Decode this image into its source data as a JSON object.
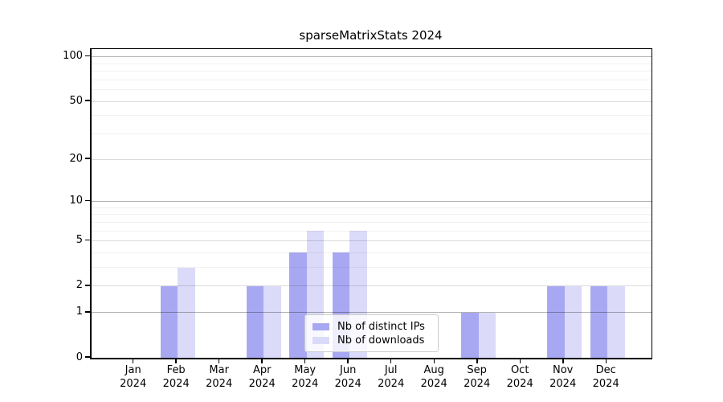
{
  "title": "sparseMatrixStats 2024",
  "chart_data": {
    "type": "bar",
    "title": "sparseMatrixStats 2024",
    "year": "2024",
    "categories": [
      "Jan",
      "Feb",
      "Mar",
      "Apr",
      "May",
      "Jun",
      "Jul",
      "Aug",
      "Sep",
      "Oct",
      "Nov",
      "Dec"
    ],
    "series": [
      {
        "name": "Nb of distinct IPs",
        "color": "#a8a8f2",
        "values": [
          0,
          2,
          0,
          2,
          4,
          4,
          0,
          0,
          1,
          0,
          2,
          2
        ]
      },
      {
        "name": "Nb of downloads",
        "color": "#dbdbf9",
        "values": [
          0,
          3,
          0,
          2,
          6,
          6,
          0,
          0,
          1,
          0,
          2,
          2
        ]
      }
    ],
    "y_axis": {
      "scale": "log1p",
      "major_ticks": [
        0,
        1,
        2,
        5,
        10,
        20,
        50,
        100
      ],
      "decade_lines": [
        1,
        10,
        100
      ],
      "mid_lines": [
        2,
        5,
        20,
        50
      ],
      "minor_gridlines": [
        3,
        4,
        6,
        7,
        8,
        9,
        30,
        40,
        60,
        70,
        80,
        90
      ],
      "ylim": [
        0,
        115
      ]
    },
    "legend": {
      "position": "lower center",
      "entries": [
        "Nb of distinct IPs",
        "Nb of downloads"
      ]
    },
    "grid": true
  }
}
